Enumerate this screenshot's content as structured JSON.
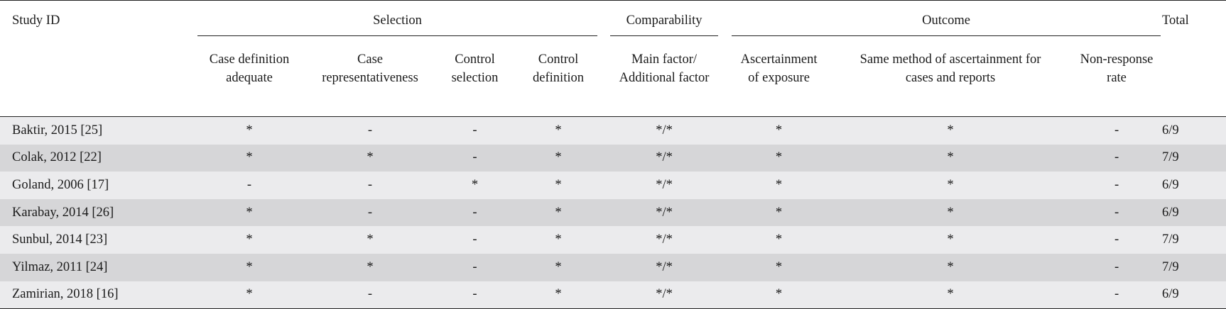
{
  "table": {
    "study_id_label": "Study ID",
    "total_label": "Total",
    "groups": {
      "selection": "Selection",
      "comparability": "Comparability",
      "outcome": "Outcome"
    },
    "columns": {
      "case_definition": [
        "Case definition",
        "adequate"
      ],
      "case_repr": [
        "Case",
        "representativeness"
      ],
      "control_selection": [
        "Control",
        "selection"
      ],
      "control_definition": [
        "Control",
        "definition"
      ],
      "main_factor": [
        "Main factor/",
        "Additional factor"
      ],
      "ascertainment": [
        "Ascertainment",
        "of exposure"
      ],
      "same_method": [
        "Same method of ascertainment for",
        "cases and reports"
      ],
      "non_response": [
        "Non-response",
        "rate"
      ]
    },
    "rows": [
      {
        "study": "Baktir, 2015 [25]",
        "c1": "*",
        "c2": "-",
        "c3": "-",
        "c4": "*",
        "c5": "*/*",
        "c6": "*",
        "c7": "*",
        "c8": "-",
        "total": "6/9"
      },
      {
        "study": "Colak, 2012 [22]",
        "c1": "*",
        "c2": "*",
        "c3": "-",
        "c4": "*",
        "c5": "*/*",
        "c6": "*",
        "c7": "*",
        "c8": "-",
        "total": "7/9"
      },
      {
        "study": "Goland, 2006 [17]",
        "c1": "-",
        "c2": "-",
        "c3": "*",
        "c4": "*",
        "c5": "*/*",
        "c6": "*",
        "c7": "*",
        "c8": "-",
        "total": "6/9"
      },
      {
        "study": "Karabay, 2014 [26]",
        "c1": "*",
        "c2": "-",
        "c3": "-",
        "c4": "*",
        "c5": "*/*",
        "c6": "*",
        "c7": "*",
        "c8": "-",
        "total": "6/9"
      },
      {
        "study": "Sunbul, 2014 [23]",
        "c1": "*",
        "c2": "*",
        "c3": "-",
        "c4": "*",
        "c5": "*/*",
        "c6": "*",
        "c7": "*",
        "c8": "-",
        "total": "7/9"
      },
      {
        "study": "Yilmaz, 2011 [24]",
        "c1": "*",
        "c2": "*",
        "c3": "-",
        "c4": "*",
        "c5": "*/*",
        "c6": "*",
        "c7": "*",
        "c8": "-",
        "total": "7/9"
      },
      {
        "study": "Zamirian, 2018 [16]",
        "c1": "*",
        "c2": "-",
        "c3": "-",
        "c4": "*",
        "c5": "*/*",
        "c6": "*",
        "c7": "*",
        "c8": "-",
        "total": "6/9"
      }
    ]
  }
}
